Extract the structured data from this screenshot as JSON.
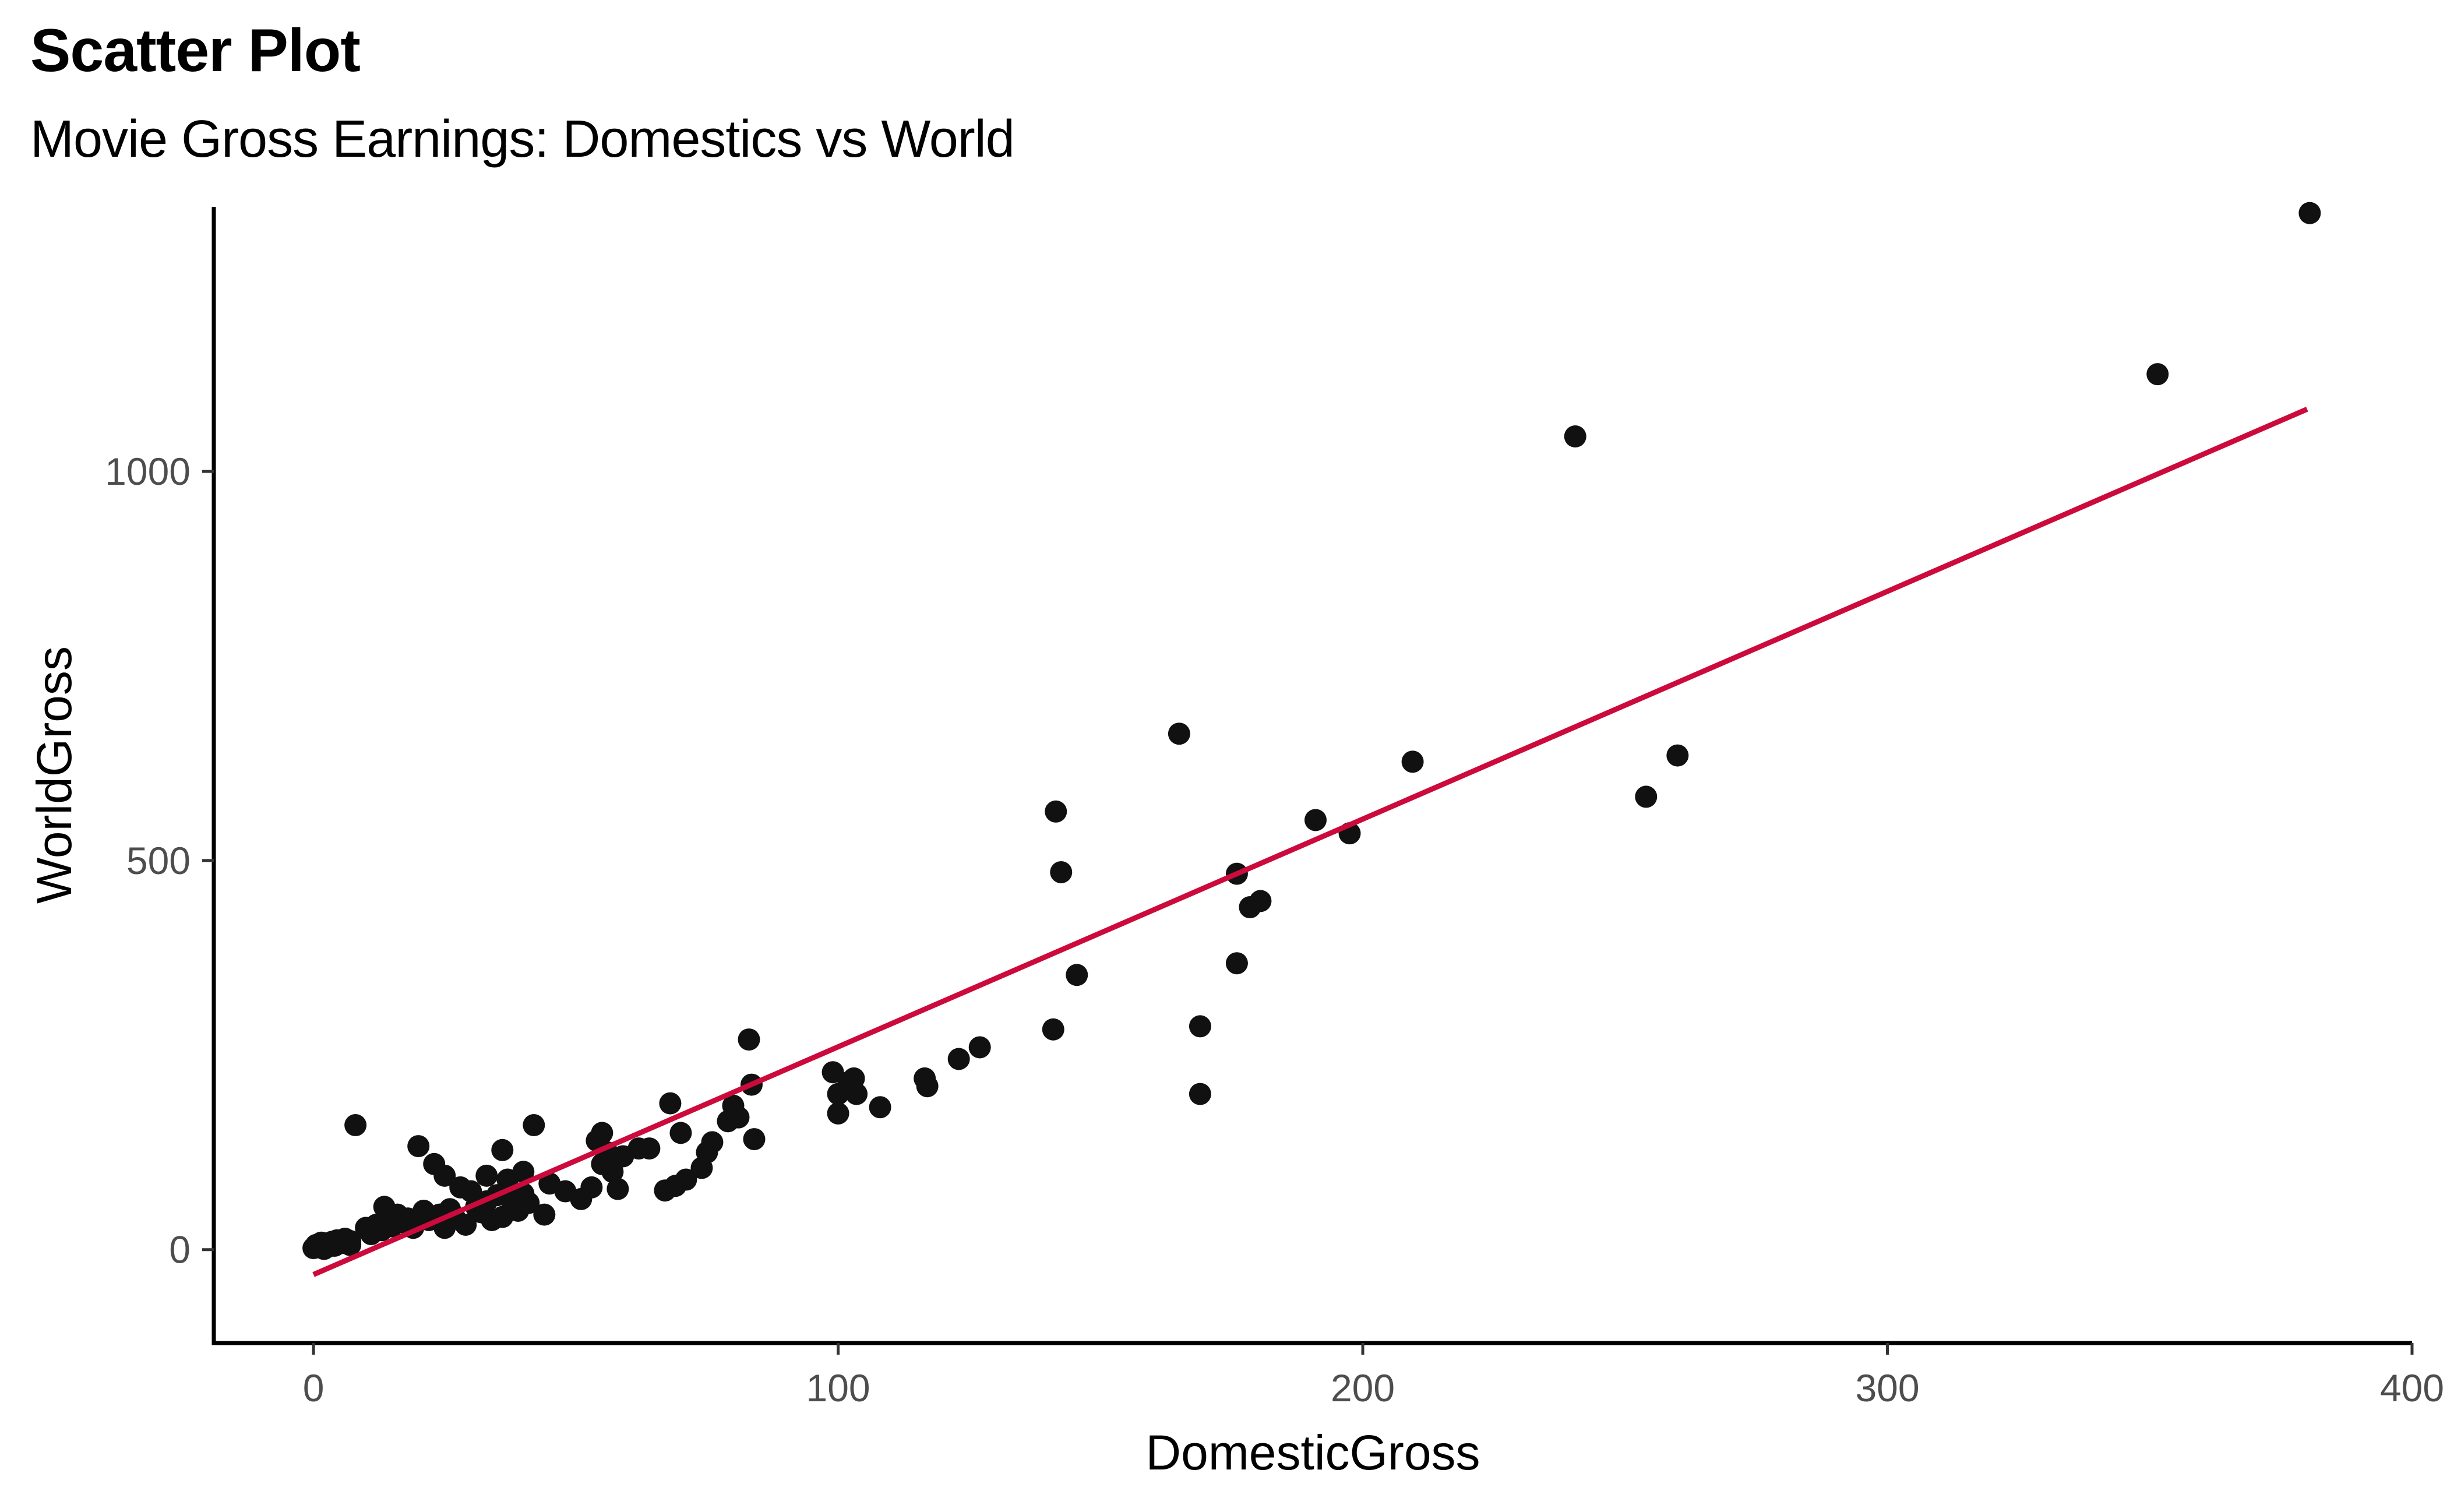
{
  "chart_data": {
    "type": "scatter",
    "title": "Scatter Plot",
    "subtitle": "Movie Gross Earnings: Domestics vs World",
    "xlabel": "DomesticGross",
    "ylabel": "WorldGross",
    "xlim": [
      -19,
      400
    ],
    "ylim": [
      -120,
      1340
    ],
    "xticks": [
      0,
      100,
      200,
      300,
      400
    ],
    "yticks": [
      0,
      500,
      1000
    ],
    "grid": false,
    "legend": "none",
    "colors": {
      "points": "#111111",
      "fit_line": "#cc0a3c",
      "axis": "#000000"
    },
    "fit_line": {
      "x": [
        0,
        380
      ],
      "y": [
        -32,
        1080
      ]
    },
    "points": [
      [
        0,
        2
      ],
      [
        0.5,
        6
      ],
      [
        1,
        4
      ],
      [
        1.5,
        9
      ],
      [
        2,
        1
      ],
      [
        2.5,
        3
      ],
      [
        3,
        7
      ],
      [
        3.5,
        10
      ],
      [
        4,
        5
      ],
      [
        4.5,
        12
      ],
      [
        5,
        8
      ],
      [
        6,
        14
      ],
      [
        7,
        6
      ],
      [
        7,
        11
      ],
      [
        8,
        160
      ],
      [
        10,
        28
      ],
      [
        11,
        20
      ],
      [
        12,
        32
      ],
      [
        13,
        25
      ],
      [
        13.5,
        55
      ],
      [
        14,
        38
      ],
      [
        15,
        30
      ],
      [
        16,
        45
      ],
      [
        17,
        35
      ],
      [
        18,
        40
      ],
      [
        19,
        28
      ],
      [
        20,
        133
      ],
      [
        20.5,
        42
      ],
      [
        21,
        50
      ],
      [
        22,
        38
      ],
      [
        23,
        110
      ],
      [
        24,
        45
      ],
      [
        25,
        95
      ],
      [
        25,
        28
      ],
      [
        26,
        52
      ],
      [
        27,
        40
      ],
      [
        28,
        80
      ],
      [
        29,
        32
      ],
      [
        30,
        75
      ],
      [
        31,
        55
      ],
      [
        32,
        48
      ],
      [
        33,
        95
      ],
      [
        33,
        62
      ],
      [
        34,
        38
      ],
      [
        35,
        70
      ],
      [
        36,
        128
      ],
      [
        36,
        42
      ],
      [
        37,
        90
      ],
      [
        38,
        58
      ],
      [
        38,
        68
      ],
      [
        39,
        50
      ],
      [
        40,
        100
      ],
      [
        40,
        72
      ],
      [
        41,
        60
      ],
      [
        42,
        160
      ],
      [
        44,
        45
      ],
      [
        45,
        85
      ],
      [
        48,
        75
      ],
      [
        51,
        65
      ],
      [
        53,
        80
      ],
      [
        54,
        140
      ],
      [
        55,
        150
      ],
      [
        55,
        110
      ],
      [
        56,
        125
      ],
      [
        57,
        100
      ],
      [
        58,
        78
      ],
      [
        59,
        120
      ],
      [
        62,
        130
      ],
      [
        64,
        130
      ],
      [
        67,
        76
      ],
      [
        68,
        188
      ],
      [
        69,
        82
      ],
      [
        70,
        150
      ],
      [
        71,
        90
      ],
      [
        74,
        105
      ],
      [
        75,
        125
      ],
      [
        76,
        138
      ],
      [
        79,
        165
      ],
      [
        80,
        185
      ],
      [
        81,
        170
      ],
      [
        83,
        270
      ],
      [
        83.5,
        212
      ],
      [
        84,
        142
      ],
      [
        99,
        228
      ],
      [
        100,
        200
      ],
      [
        100,
        175
      ],
      [
        102,
        215
      ],
      [
        103,
        220
      ],
      [
        103.5,
        200
      ],
      [
        108,
        183
      ],
      [
        116.5,
        220
      ],
      [
        117,
        210
      ],
      [
        123,
        245
      ],
      [
        127,
        260
      ],
      [
        141,
        283
      ],
      [
        141.5,
        563
      ],
      [
        142.5,
        485
      ],
      [
        145.5,
        353
      ],
      [
        165,
        663
      ],
      [
        169,
        287
      ],
      [
        169,
        200
      ],
      [
        176,
        483
      ],
      [
        176,
        368
      ],
      [
        178.5,
        440
      ],
      [
        180.5,
        448
      ],
      [
        191,
        552
      ],
      [
        197.5,
        535
      ],
      [
        209.5,
        627
      ],
      [
        240.5,
        1045
      ],
      [
        254,
        582
      ],
      [
        260,
        635
      ],
      [
        351.5,
        1125
      ],
      [
        380.5,
        1332
      ]
    ]
  }
}
